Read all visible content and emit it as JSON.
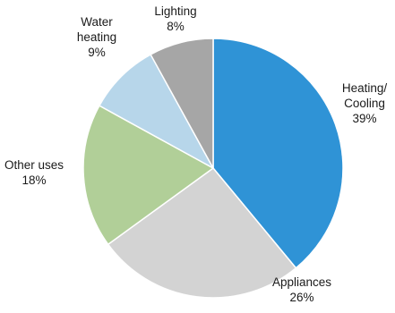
{
  "chart_data": {
    "type": "pie",
    "title": "",
    "start": "12 o'clock",
    "direction": "clockwise",
    "slices": [
      {
        "label_lines": [
          "Heating/",
          "Cooling",
          "39%"
        ],
        "category": "Heating/Cooling",
        "value": 39,
        "color": "#2f93d6"
      },
      {
        "label_lines": [
          "Appliances",
          "26%"
        ],
        "category": "Appliances",
        "value": 26,
        "color": "#d3d3d3"
      },
      {
        "label_lines": [
          "Other uses",
          "18%"
        ],
        "category": "Other uses",
        "value": 18,
        "color": "#b1cf98"
      },
      {
        "label_lines": [
          "Water",
          "heating",
          "9%"
        ],
        "category": "Water heating",
        "value": 9,
        "color": "#b7d6ea"
      },
      {
        "label_lines": [
          "Lighting",
          "8%"
        ],
        "category": "Lighting",
        "value": 8,
        "color": "#a6a6a6"
      }
    ]
  }
}
